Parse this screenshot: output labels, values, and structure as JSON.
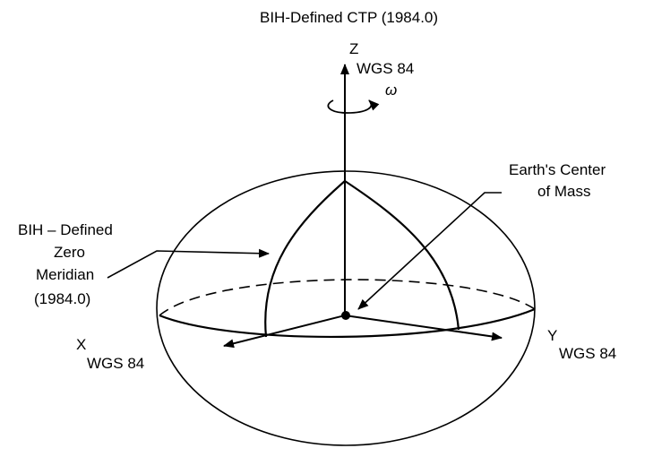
{
  "labels": {
    "title": "BIH-Defined CTP (1984.0)",
    "z_letter": "Z",
    "z_sub": "WGS 84",
    "omega": "ω",
    "center_line1": "Earth's Center",
    "center_line2": "of Mass",
    "meridian_line1": "BIH – Defined",
    "meridian_line2": "Zero",
    "meridian_line3": "Meridian",
    "meridian_line4": "(1984.0)",
    "x_letter": "X",
    "x_sub": "WGS 84",
    "y_letter": "Y",
    "y_sub": "WGS 84"
  },
  "colors": {
    "ink": "#000000",
    "paper": "#ffffff"
  }
}
